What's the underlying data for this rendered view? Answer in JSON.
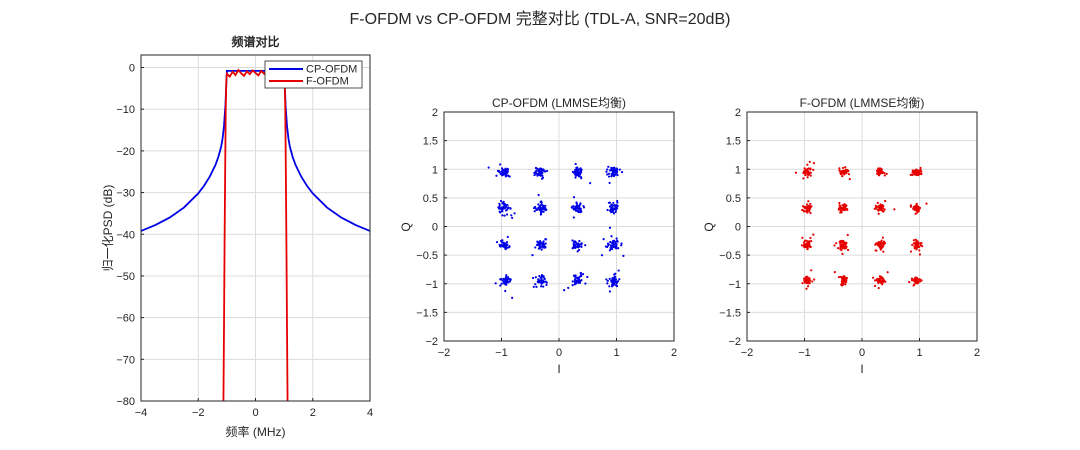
{
  "figure": {
    "suptitle": "F-OFDM vs CP-OFDM 完整对比 (TDL-A, SNR=20dB)"
  },
  "colors": {
    "cp_ofdm": "#0000e6",
    "f_ofdm": "#e60000",
    "grid": "#dcdcdc",
    "axis": "#262626"
  },
  "chart_data": [
    {
      "id": "spectrum",
      "type": "line",
      "title": "频谱对比",
      "xlabel": "频率 (MHz)",
      "ylabel": "归一化PSD (dB)",
      "xlim": [
        -4,
        4
      ],
      "ylim": [
        -80,
        3
      ],
      "xticks": [
        -4,
        -2,
        0,
        2,
        4
      ],
      "yticks": [
        0,
        -10,
        -20,
        -30,
        -40,
        -50,
        -60,
        -70,
        -80
      ],
      "grid": true,
      "legend": {
        "position": "top-right",
        "entries": [
          "CP-OFDM",
          "F-OFDM"
        ]
      },
      "series": [
        {
          "name": "CP-OFDM",
          "color": "#0000e6",
          "x": [
            -4,
            -3.5,
            -3,
            -2.5,
            -2,
            -1.8,
            -1.6,
            -1.4,
            -1.3,
            -1.2,
            -1.15,
            -1.1,
            -1.05,
            -1.0,
            1.0,
            1.05,
            1.1,
            1.15,
            1.2,
            1.3,
            1.4,
            1.6,
            1.8,
            2,
            2.5,
            3,
            3.5,
            4
          ],
          "y": [
            -39.2,
            -37.8,
            -36,
            -33.6,
            -30.2,
            -28.4,
            -26.2,
            -23.4,
            -21.5,
            -19,
            -17,
            -14,
            -9,
            -0.8,
            -0.8,
            -9,
            -14,
            -17,
            -19,
            -21.5,
            -23.4,
            -26.2,
            -28.4,
            -30.2,
            -33.6,
            -36,
            -37.8,
            -39.2
          ]
        },
        {
          "name": "F-OFDM",
          "color": "#e60000",
          "x": [
            -1.12,
            -1.1,
            -1.08,
            -1.06,
            -1.04,
            -1.02,
            -1.0,
            -0.9,
            -0.8,
            -0.7,
            -0.6,
            -0.5,
            -0.4,
            -0.3,
            -0.2,
            -0.1,
            0,
            0.1,
            0.2,
            0.3,
            0.4,
            0.5,
            0.6,
            0.7,
            0.8,
            0.9,
            1.0,
            1.02,
            1.04,
            1.06,
            1.08,
            1.1,
            1.12
          ],
          "y": [
            -80,
            -62,
            -42,
            -25,
            -10,
            -3,
            -1.5,
            -2.2,
            -1.0,
            -1.8,
            -0.6,
            -1.4,
            -2.0,
            -0.9,
            -1.6,
            -0.7,
            -1.3,
            -1.9,
            -0.8,
            -1.5,
            -0.6,
            -1.2,
            -2.1,
            -0.9,
            -1.7,
            -1.0,
            -1.5,
            -3,
            -10,
            -25,
            -42,
            -62,
            -80
          ]
        }
      ]
    },
    {
      "id": "cp-constellation",
      "type": "scatter",
      "title": "CP-OFDM (LMMSE均衡)",
      "xlabel": "I",
      "ylabel": "Q",
      "xlim": [
        -2,
        2
      ],
      "ylim": [
        -2,
        2
      ],
      "xticks": [
        -2,
        -1,
        0,
        1,
        2
      ],
      "yticks": [
        2,
        1.5,
        1,
        0.5,
        0,
        -0.5,
        -1,
        -1.5,
        -2
      ],
      "grid": true,
      "color": "#0000e6",
      "points_per_cluster": 45,
      "spread": 0.045,
      "centers": [
        [
          -0.95,
          0.95
        ],
        [
          -0.32,
          0.95
        ],
        [
          0.32,
          0.95
        ],
        [
          0.95,
          0.95
        ],
        [
          -0.95,
          0.32
        ],
        [
          -0.32,
          0.32
        ],
        [
          0.32,
          0.32
        ],
        [
          0.95,
          0.32
        ],
        [
          -0.95,
          -0.32
        ],
        [
          -0.32,
          -0.32
        ],
        [
          0.32,
          -0.32
        ],
        [
          0.95,
          -0.32
        ],
        [
          -0.95,
          -0.95
        ],
        [
          -0.32,
          -0.95
        ],
        [
          0.32,
          -0.95
        ],
        [
          0.95,
          -0.95
        ]
      ]
    },
    {
      "id": "f-constellation",
      "type": "scatter",
      "title": "F-OFDM (LMMSE均衡)",
      "xlabel": "I",
      "ylabel": "Q",
      "xlim": [
        -2,
        2
      ],
      "ylim": [
        -2,
        2
      ],
      "xticks": [
        -2,
        -1,
        0,
        1,
        2
      ],
      "yticks": [
        2,
        1.5,
        1,
        0.5,
        0,
        -0.5,
        -1,
        -1.5,
        -2
      ],
      "grid": true,
      "color": "#e60000",
      "points_per_cluster": 45,
      "spread": 0.035,
      "centers": [
        [
          -0.95,
          0.95
        ],
        [
          -0.32,
          0.95
        ],
        [
          0.32,
          0.95
        ],
        [
          0.95,
          0.95
        ],
        [
          -0.95,
          0.32
        ],
        [
          -0.32,
          0.32
        ],
        [
          0.32,
          0.32
        ],
        [
          0.95,
          0.32
        ],
        [
          -0.95,
          -0.32
        ],
        [
          -0.32,
          -0.32
        ],
        [
          0.32,
          -0.32
        ],
        [
          0.95,
          -0.32
        ],
        [
          -0.95,
          -0.95
        ],
        [
          -0.32,
          -0.95
        ],
        [
          0.32,
          -0.95
        ],
        [
          0.95,
          -0.95
        ]
      ]
    }
  ]
}
